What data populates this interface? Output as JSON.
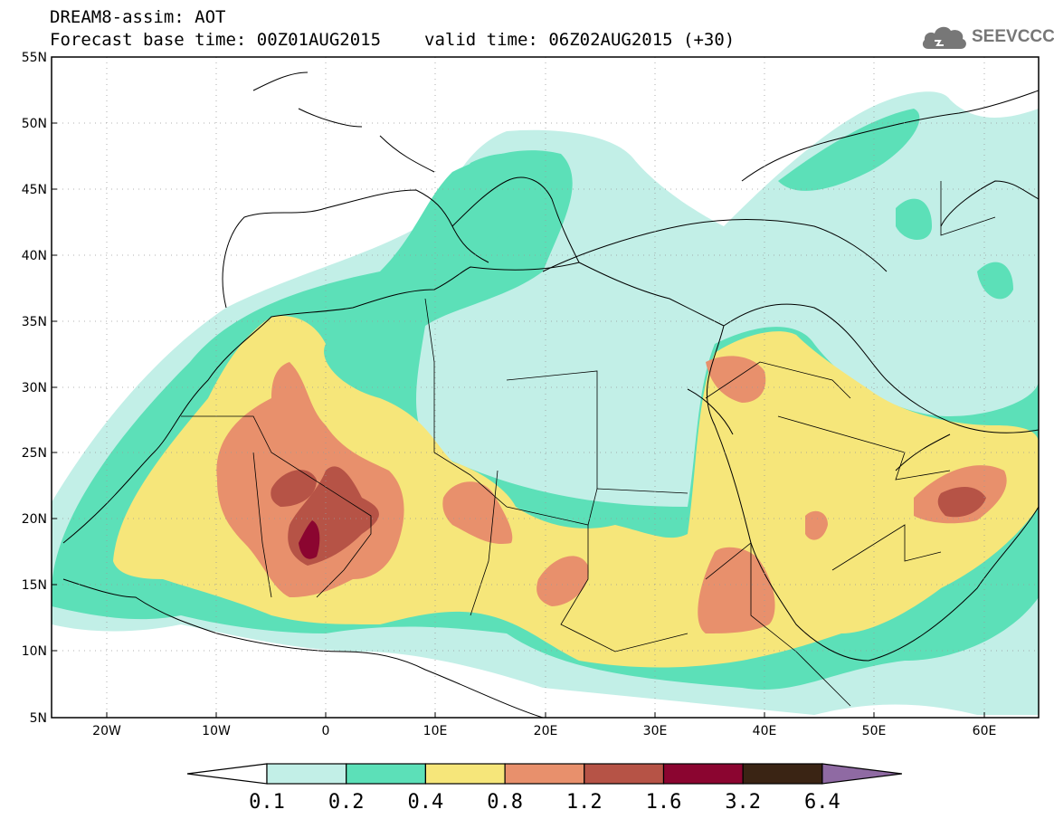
{
  "title": {
    "line1": "DREAM8-assim: AOT",
    "base_time": "Forecast base time: 00Z01AUG2015",
    "valid_time": "valid time: 06Z02AUG2015 (+30)"
  },
  "logo": {
    "text": "SEEVCCC",
    "icon": "cloud-icon"
  },
  "map": {
    "lon_range": [
      -25,
      65
    ],
    "lat_range": [
      5,
      55
    ],
    "lat_labels": [
      "5N",
      "10N",
      "15N",
      "20N",
      "25N",
      "30N",
      "35N",
      "40N",
      "45N",
      "50N",
      "55N"
    ],
    "lon_labels": [
      "20W",
      "10W",
      "0",
      "10E",
      "20E",
      "30E",
      "40E",
      "50E",
      "60E"
    ]
  },
  "colorbar": {
    "thresholds": [
      "0.1",
      "0.2",
      "0.4",
      "0.8",
      "1.2",
      "1.6",
      "3.2",
      "6.4"
    ],
    "colors": [
      "#ffffff",
      "#c2efe7",
      "#5ce0b8",
      "#f6e67a",
      "#e8906c",
      "#b65346",
      "#8b0530",
      "#3a2414",
      "#8f6aa3"
    ]
  }
}
